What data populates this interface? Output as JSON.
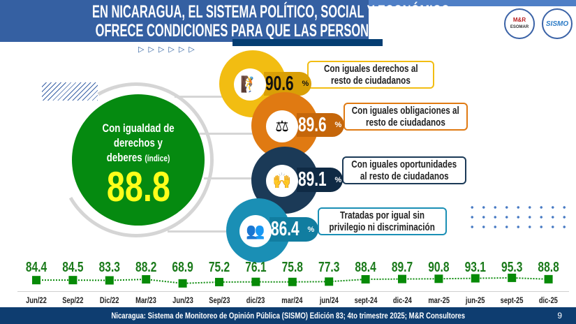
{
  "header": {
    "title_line1": "EN NICARAGUA, EL SISTEMA POLÍTICO, SOCIAL Y ECONÓMICO",
    "title_line2": "OFRECE CONDICIONES PARA QUE LAS PERSONAS SE SIENTAN...",
    "arrows": "▷▷▷▷▷▷",
    "logos": [
      {
        "text": "M&R Consultores ESOMAR member"
      },
      {
        "text": "SISMO"
      }
    ]
  },
  "index": {
    "label_line1": "Con igualdad de",
    "label_line2": "derechos y",
    "label_line3": "deberes",
    "label_suffix": "(índice)",
    "value": "88.8"
  },
  "items": [
    {
      "value": "90.6",
      "unit": "%",
      "text_line1": "Con iguales derechos al",
      "text_line2": "resto de ciudadanos",
      "color": "#f2bd12",
      "pill_color": "#d99f06",
      "value_color": "#111111",
      "icon": "people-climbing-icon"
    },
    {
      "value": "89.6",
      "unit": "%",
      "text_line1": "Con iguales obligaciones al",
      "text_line2": "resto de ciudadanos",
      "color": "#e07a12",
      "pill_color": "#c5660a",
      "value_color": "#ffffff",
      "icon": "balance-scale-icon"
    },
    {
      "value": "89.1",
      "unit": "%",
      "text_line1": "Con iguales oportunidades",
      "text_line2": "al resto de ciudadanos",
      "color": "#1b3a57",
      "pill_color": "#0f2a44",
      "value_color": "#ffffff",
      "icon": "people-podium-icon"
    },
    {
      "value": "86.4",
      "unit": "%",
      "text_line1": "Tratadas por igual sin",
      "text_line2": "privilegio ni discriminación",
      "color": "#1a8fb5",
      "pill_color": "#117da0",
      "value_color": "#ffffff",
      "icon": "diverse-people-icon"
    }
  ],
  "chart_data": {
    "type": "line",
    "categories": [
      "Jun/22",
      "Sep/22",
      "Dic/22",
      "Mar/23",
      "Jun/23",
      "Sep/23",
      "dic/23",
      "mar/24",
      "jun/24",
      "sept-24",
      "dic-24",
      "mar-25",
      "jun-25",
      "sept-25",
      "dic-25"
    ],
    "values": [
      84.4,
      84.5,
      83.3,
      88.2,
      68.9,
      75.2,
      76.1,
      75.8,
      77.3,
      88.4,
      89.7,
      90.8,
      93.1,
      95.3,
      88.8
    ],
    "labels": [
      "84.4",
      "84.5",
      "83.3",
      "88.2",
      "68.9",
      "75.2",
      "76.1",
      "75.8",
      "77.3",
      "88.4",
      "89.7",
      "90.8",
      "93.1",
      "95.3",
      "88.8"
    ],
    "color": "#0a8a0a",
    "line_style": "dotted",
    "marker": "square"
  },
  "footer": {
    "source": "Nicaragua: Sistema de Monitoreo de Opinión Pública (SISMO) Edición 83; 4to trimestre 2025; M&R Consultores",
    "page": "9"
  }
}
